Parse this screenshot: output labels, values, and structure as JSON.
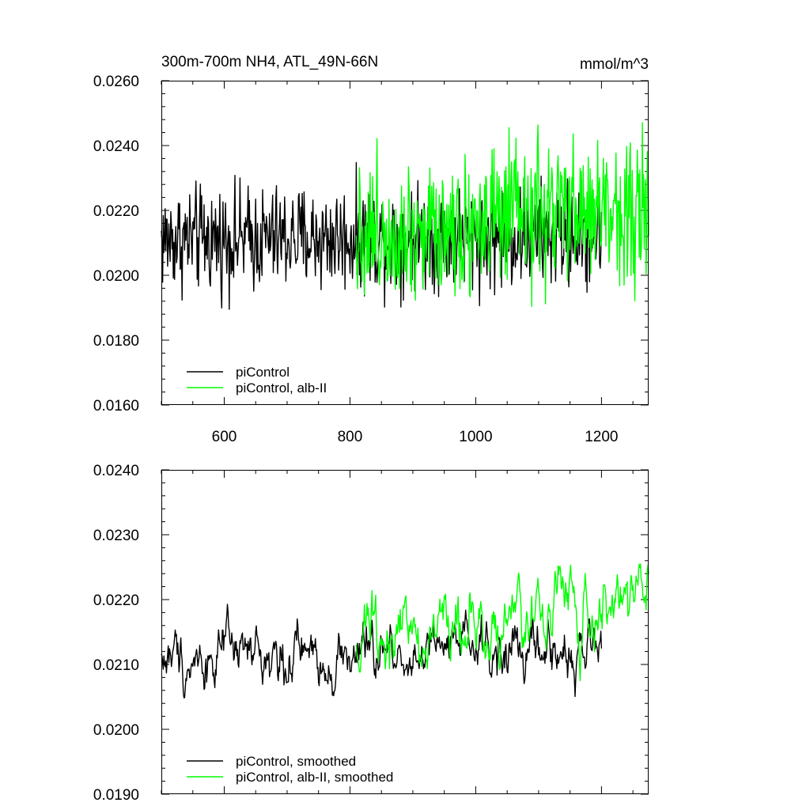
{
  "chart_data": [
    {
      "type": "line",
      "title_left": "300m-700m NH4, ATL_49N-66N",
      "title_right": "mmol/m^3",
      "xlim": [
        500,
        1275
      ],
      "ylim": [
        0.016,
        0.026
      ],
      "x_ticks": [
        "600",
        "800",
        "1000",
        "1200"
      ],
      "y_ticks": [
        "0.0160",
        "0.0180",
        "0.0200",
        "0.0220",
        "0.0240",
        "0.0260"
      ],
      "legend_position": "bottom-left",
      "series": [
        {
          "name": "piControl",
          "color": "#000000",
          "x_range": [
            500,
            1200
          ],
          "base_start": 0.0211,
          "base_end": 0.0212,
          "amplitude": 0.0008
        },
        {
          "name": "piControl, alb-II",
          "color": "#00ff00",
          "x_range": [
            810,
            1275
          ],
          "base_start": 0.0213,
          "base_end": 0.0221,
          "amplitude": 0.0011
        }
      ]
    },
    {
      "type": "line",
      "xlim": [
        500,
        1275
      ],
      "ylim": [
        0.019,
        0.024
      ],
      "x_ticks": [],
      "y_ticks": [
        "0.0190",
        "0.0200",
        "0.0210",
        "0.0220",
        "0.0230",
        "0.0240"
      ],
      "legend_position": "bottom-left",
      "series": [
        {
          "name": "piControl, smoothed",
          "color": "#000000",
          "x_range": [
            500,
            1200
          ],
          "base_start": 0.0211,
          "base_end": 0.0212,
          "amplitude": 0.0004
        },
        {
          "name": "piControl, alb-II, smoothed",
          "color": "#00ff00",
          "x_range": [
            810,
            1275
          ],
          "base_start": 0.0213,
          "base_end": 0.0221,
          "amplitude": 0.0005
        }
      ]
    }
  ]
}
